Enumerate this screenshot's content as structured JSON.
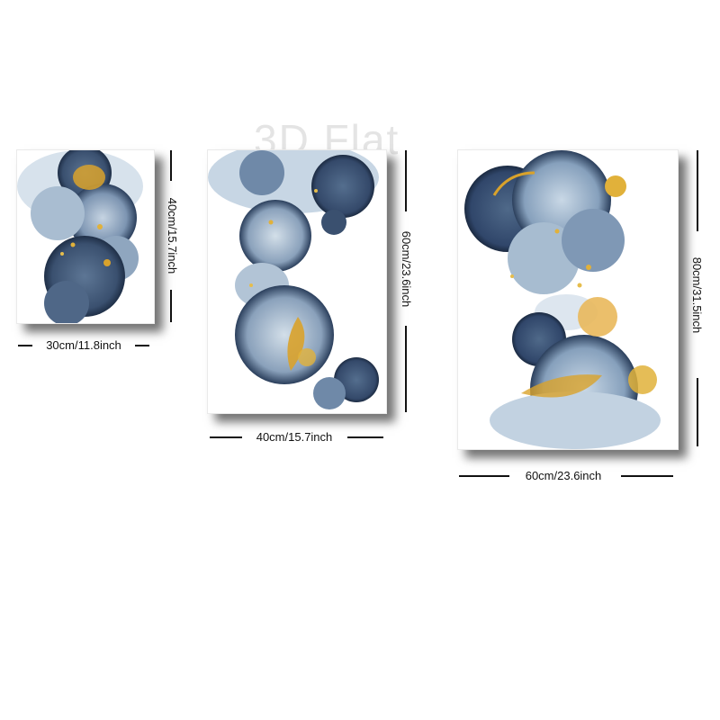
{
  "watermark": "3D Flat",
  "panels": [
    {
      "name": "small",
      "width_label": "30cm/11.8inch",
      "height_label": "40cm/15.7inch"
    },
    {
      "name": "medium",
      "width_label": "40cm/15.7inch",
      "height_label": "60cm/23.6inch"
    },
    {
      "name": "large",
      "width_label": "60cm/23.6inch",
      "height_label": "80cm/31.5inch"
    }
  ],
  "colors": {
    "navy": "#2b3f5c",
    "slate_blue": "#6f89a8",
    "pale_blue": "#b9cadb",
    "gold": "#d9a22b",
    "shadow": "#000000"
  },
  "icons": [
    "alcohol-ink-painting",
    "dimension-line"
  ]
}
